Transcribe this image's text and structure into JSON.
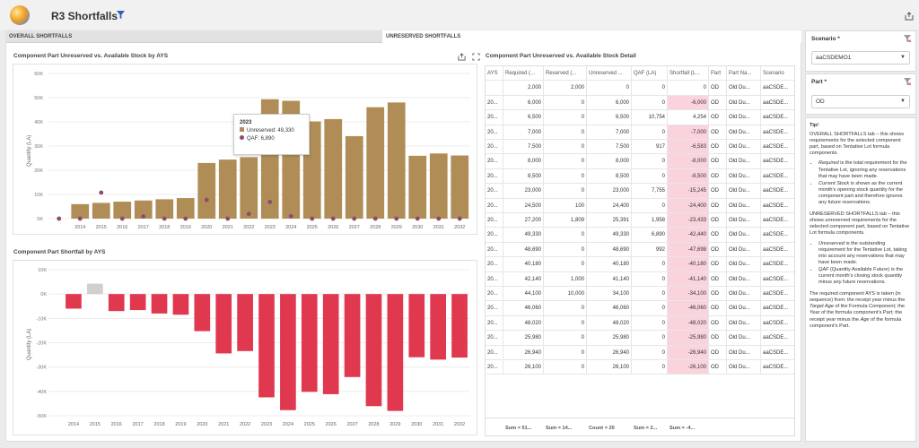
{
  "header": {
    "title": "R3 Shortfalls"
  },
  "tabs": [
    "OVERALL SHORTFALLS",
    "UNRESERVED SHORTFALLS"
  ],
  "chart1": {
    "title": "Component Part Unreserved vs. Available Stock by AYS",
    "ylabel": "Quantity (LA)"
  },
  "chart2": {
    "title": "Component Part Shortfall by AYS",
    "ylabel": "Quantity (LA)"
  },
  "tooltip": {
    "year": "2023",
    "line1": "Unreserved: 49,330",
    "line2": "QAF: 6,890"
  },
  "grid": {
    "title": "Component Part Unreserved vs. Available Stock Detail",
    "headers": [
      "AYS",
      "Required (...",
      "Reserved (...",
      "Unreserved ...",
      "QAF (LA)",
      "Shortfall (L...",
      "Part",
      "Part Na...",
      "Scenario"
    ],
    "rows": [
      [
        "",
        "2,000",
        "2,000",
        "0",
        "0",
        "0",
        "OD",
        "Old Du...",
        "aaCSDE..."
      ],
      [
        "20...",
        "6,000",
        "0",
        "6,000",
        "0",
        "-6,000",
        "OD",
        "Old Du...",
        "aaCSDE..."
      ],
      [
        "20...",
        "6,500",
        "0",
        "6,500",
        "10,754",
        "4,254",
        "OD",
        "Old Du...",
        "aaCSDE..."
      ],
      [
        "20...",
        "7,000",
        "0",
        "7,000",
        "0",
        "-7,000",
        "OD",
        "Old Du...",
        "aaCSDE..."
      ],
      [
        "20...",
        "7,500",
        "0",
        "7,500",
        "917",
        "-6,583",
        "OD",
        "Old Du...",
        "aaCSDE..."
      ],
      [
        "20...",
        "8,000",
        "0",
        "8,000",
        "0",
        "-8,000",
        "OD",
        "Old Du...",
        "aaCSDE..."
      ],
      [
        "20...",
        "8,500",
        "0",
        "8,500",
        "0",
        "-8,500",
        "OD",
        "Old Du...",
        "aaCSDE..."
      ],
      [
        "20...",
        "23,000",
        "0",
        "23,000",
        "7,755",
        "-15,245",
        "OD",
        "Old Du...",
        "aaCSDE..."
      ],
      [
        "20...",
        "24,500",
        "100",
        "24,400",
        "0",
        "-24,400",
        "OD",
        "Old Du...",
        "aaCSDE..."
      ],
      [
        "20...",
        "27,200",
        "1,809",
        "25,391",
        "1,958",
        "-23,433",
        "OD",
        "Old Du...",
        "aaCSDE..."
      ],
      [
        "20...",
        "49,330",
        "0",
        "49,330",
        "6,890",
        "-42,440",
        "OD",
        "Old Du...",
        "aaCSDE..."
      ],
      [
        "20...",
        "48,690",
        "0",
        "48,690",
        "992",
        "-47,698",
        "OD",
        "Old Du...",
        "aaCSDE..."
      ],
      [
        "20...",
        "40,180",
        "0",
        "40,180",
        "0",
        "-40,180",
        "OD",
        "Old Du...",
        "aaCSDE..."
      ],
      [
        "20...",
        "42,140",
        "1,000",
        "41,140",
        "0",
        "-41,140",
        "OD",
        "Old Du...",
        "aaCSDE..."
      ],
      [
        "20...",
        "44,100",
        "10,000",
        "34,100",
        "0",
        "-34,100",
        "OD",
        "Old Du...",
        "aaCSDE..."
      ],
      [
        "20...",
        "46,060",
        "0",
        "46,060",
        "0",
        "-46,060",
        "OD",
        "Old Du...",
        "aaCSDE..."
      ],
      [
        "20...",
        "48,020",
        "0",
        "48,020",
        "0",
        "-48,020",
        "OD",
        "Old Du...",
        "aaCSDE..."
      ],
      [
        "20...",
        "25,980",
        "0",
        "25,980",
        "0",
        "-25,980",
        "OD",
        "Old Du...",
        "aaCSDE..."
      ],
      [
        "20...",
        "26,940",
        "0",
        "26,940",
        "0",
        "-26,940",
        "OD",
        "Old Du...",
        "aaCSDE..."
      ],
      [
        "20...",
        "26,100",
        "0",
        "26,100",
        "0",
        "-26,100",
        "OD",
        "Old Du...",
        "aaCSDE..."
      ]
    ],
    "footer": [
      "Sum = 51...",
      "Sum = 14...",
      "Count = 20",
      "Sum = 2...",
      "Sum = -4..."
    ]
  },
  "scenario": {
    "label": "Scenario *",
    "value": "aaCSDEMO1"
  },
  "part": {
    "label": "Part *",
    "value": "OD"
  },
  "tip": {
    "title": "Tip!",
    "p1": "OVERALL SHORTFALLS tab – this shows requirements for the selected component part, based on Tentative Lot formula components.",
    "b1_em": "Required",
    "b1": " is the total requirement for the Tentative Lot, ignoring any reservations that may have been made.",
    "b2_em": "Current Stock",
    "b2": " is shown as the current month's opening stock quantity for the component part and therefore ignores any future reservations.",
    "p2": "UNRESERVED SHORTFALLS tab – this shows unreserved requirements for the selected component part, based on Tentative Lot formula components.",
    "b3_em": "Unreserved",
    "b3": " is the outstanding requirement for the Tentative Lot, taking into account any reservations that may have been made.",
    "b4_em": "QAF",
    "b4": " (Quantity Available Future) is the current month's closing stock quantity minus any future reservations.",
    "p3a": "The required component AYS is taken (in sequence) from: the receipt year minus the ",
    "p3b": "Target Age",
    "p3c": " of the Formula Component; the ",
    "p3d": "Year",
    "p3e": " of the formula component's Part; the receipt year minus the ",
    "p3f": "Age",
    "p3g": " of the formula component's Part."
  },
  "chart_data": [
    {
      "type": "bar",
      "title": "Component Part Unreserved vs. Available Stock by AYS",
      "ylabel": "Quantity (LA)",
      "categories": [
        "",
        "2014",
        "2015",
        "2016",
        "2017",
        "2018",
        "2019",
        "2020",
        "2021",
        "2022",
        "2023",
        "2024",
        "2025",
        "2026",
        "2027",
        "2028",
        "2029",
        "2030",
        "2031",
        "2032"
      ],
      "yticks": [
        "0K",
        "10K",
        "20K",
        "30K",
        "40K",
        "50K",
        "60K"
      ],
      "ylim": [
        0,
        60000
      ],
      "series": [
        {
          "name": "Unreserved",
          "color": "#b08d57",
          "values": [
            0,
            6000,
            6500,
            7000,
            7500,
            8000,
            8500,
            23000,
            24400,
            25391,
            49330,
            48690,
            40180,
            41140,
            34100,
            46060,
            48020,
            25980,
            26940,
            26100
          ]
        },
        {
          "name": "QAF",
          "color": "#8e4a6e",
          "values": [
            0,
            0,
            10754,
            0,
            917,
            0,
            0,
            7755,
            0,
            1958,
            6890,
            992,
            0,
            0,
            0,
            0,
            0,
            0,
            0,
            0
          ]
        }
      ]
    },
    {
      "type": "bar",
      "title": "Component Part Shortfall by AYS",
      "ylabel": "Quantity (LA)",
      "categories": [
        "2014",
        "2015",
        "2016",
        "2017",
        "2018",
        "2019",
        "2020",
        "2021",
        "2022",
        "2023",
        "2024",
        "2025",
        "2026",
        "2027",
        "2028",
        "2029",
        "2030",
        "2031",
        "2032"
      ],
      "yticks": [
        "10K",
        "0K",
        "-10K",
        "-20K",
        "-30K",
        "-40K",
        "-50K"
      ],
      "ylim": [
        -50000,
        10000
      ],
      "series": [
        {
          "color": "#e0384f",
          "values": [
            -6000,
            4254,
            -7000,
            -6583,
            -8000,
            -8500,
            -15245,
            -24400,
            -23433,
            -42440,
            -47698,
            -40180,
            -41140,
            -34100,
            -46060,
            -48020,
            -25980,
            -26940,
            -26100
          ]
        }
      ],
      "positive_color": "#cfcfcf"
    }
  ]
}
